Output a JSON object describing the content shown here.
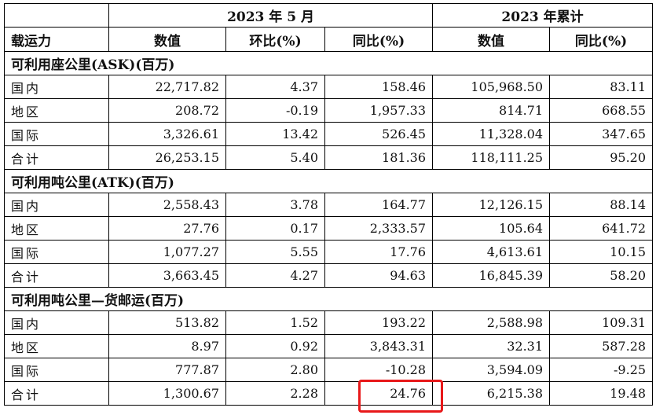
{
  "header": {
    "group_month": "2023 年 5 月",
    "group_cumulative": "2023 年累计",
    "col_capacity": "载运力",
    "col_value": "数值",
    "col_mom": "环比(%)",
    "col_yoy": "同比(%)",
    "col_cum_value": "数值",
    "col_cum_yoy": "同比(%)"
  },
  "sections": [
    {
      "title": "可利用座公里(ASK)(百万)",
      "rows": [
        {
          "name": "国内",
          "value": "22,717.82",
          "mom": "4.37",
          "yoy": "158.46",
          "cum_value": "105,968.50",
          "cum_yoy": "83.11"
        },
        {
          "name": "地区",
          "value": "208.72",
          "mom": "-0.19",
          "yoy": "1,957.33",
          "cum_value": "814.71",
          "cum_yoy": "668.55"
        },
        {
          "name": "国际",
          "value": "3,326.61",
          "mom": "13.42",
          "yoy": "526.45",
          "cum_value": "11,328.04",
          "cum_yoy": "347.65"
        },
        {
          "name": "合计",
          "value": "26,253.15",
          "mom": "5.40",
          "yoy": "181.36",
          "cum_value": "118,111.25",
          "cum_yoy": "95.20"
        }
      ]
    },
    {
      "title": "可利用吨公里(ATK)(百万)",
      "rows": [
        {
          "name": "国内",
          "value": "2,558.43",
          "mom": "3.78",
          "yoy": "164.77",
          "cum_value": "12,126.15",
          "cum_yoy": "88.14"
        },
        {
          "name": "地区",
          "value": "27.76",
          "mom": "0.17",
          "yoy": "2,333.57",
          "cum_value": "105.64",
          "cum_yoy": "641.72"
        },
        {
          "name": "国际",
          "value": "1,077.27",
          "mom": "5.55",
          "yoy": "17.76",
          "cum_value": "4,613.61",
          "cum_yoy": "10.15"
        },
        {
          "name": "合计",
          "value": "3,663.45",
          "mom": "4.27",
          "yoy": "94.63",
          "cum_value": "16,845.39",
          "cum_yoy": "58.20"
        }
      ]
    },
    {
      "title": "可利用吨公里—货邮运(百万)",
      "rows": [
        {
          "name": "国内",
          "value": "513.82",
          "mom": "1.52",
          "yoy": "193.22",
          "cum_value": "2,588.98",
          "cum_yoy": "109.31"
        },
        {
          "name": "地区",
          "value": "8.97",
          "mom": "0.92",
          "yoy": "3,843.31",
          "cum_value": "32.31",
          "cum_yoy": "587.28"
        },
        {
          "name": "国际",
          "value": "777.87",
          "mom": "2.80",
          "yoy": "-10.28",
          "cum_value": "3,594.09",
          "cum_yoy": "-9.25"
        },
        {
          "name": "合计",
          "value": "1,300.67",
          "mom": "2.28",
          "yoy": "24.76",
          "cum_value": "6,215.38",
          "cum_yoy": "19.48"
        }
      ]
    }
  ],
  "highlight_color": "#e8181a"
}
